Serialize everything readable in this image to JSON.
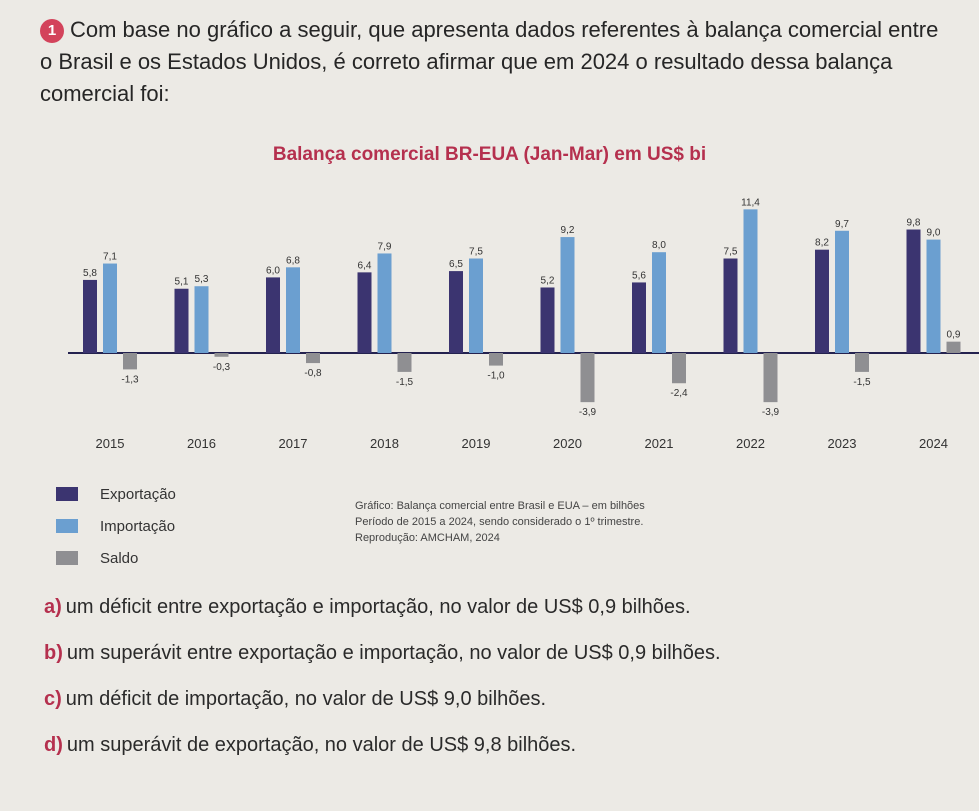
{
  "question": {
    "number": "1",
    "text": "Com base no gráfico a seguir, que apresenta dados referentes à balança comercial entre o Brasil e os Estados Unidos, é correto afirmar que em 2024 o resultado dessa balança comercial foi:"
  },
  "chart_data": {
    "type": "bar",
    "title": "Balança comercial BR-EUA (Jan-Mar) em US$ bi",
    "categories": [
      "2015",
      "2016",
      "2017",
      "2018",
      "2019",
      "2020",
      "2021",
      "2022",
      "2023",
      "2024"
    ],
    "series": [
      {
        "name": "Exportação",
        "color": "#3b3470",
        "values": [
          5.8,
          5.1,
          6.0,
          6.4,
          6.5,
          5.2,
          5.6,
          7.5,
          8.2,
          9.8
        ],
        "labels": [
          "5,8",
          "5,1",
          "6,0",
          "6,4",
          "6,5",
          "5,2",
          "5,6",
          "7,5",
          "8,2",
          "9,8"
        ]
      },
      {
        "name": "Importação",
        "color": "#6b9fd0",
        "values": [
          7.1,
          5.3,
          6.8,
          7.9,
          7.5,
          9.2,
          8.0,
          11.4,
          9.7,
          9.0
        ],
        "labels": [
          "7,1",
          "5,3",
          "6,8",
          "7,9",
          "7,5",
          "9,2",
          "8,0",
          "11,4",
          "9,7",
          "9,0"
        ]
      },
      {
        "name": "Saldo",
        "color": "#8f8f92",
        "values": [
          -1.3,
          -0.3,
          -0.8,
          -1.5,
          -1.0,
          -3.9,
          -2.4,
          -3.9,
          -1.5,
          0.9
        ],
        "labels": [
          "-1,3",
          "-0,3",
          "-0,8",
          "-1,5",
          "-1,0",
          "-3,9",
          "-2,4",
          "-3,9",
          "-1,5",
          "0,9"
        ]
      }
    ],
    "legend": [
      "Exportação",
      "Importação",
      "Saldo"
    ],
    "axis_color": "#24224f"
  },
  "caption": {
    "line1": "Gráfico: Balança comercial entre Brasil e EUA – em bilhões",
    "line2": "Período de 2015 a 2024, sendo considerado o 1º trimestre.",
    "line3": "Reprodução: AMCHAM, 2024"
  },
  "answers": [
    {
      "letter": "a)",
      "text": "um déficit entre exportação e importação, no valor de US$ 0,9 bilhões."
    },
    {
      "letter": "b)",
      "text": "um superávit entre exportação e importação, no valor de US$ 0,9 bilhões."
    },
    {
      "letter": "c)",
      "text": "um déficit de importação, no valor de US$ 9,0 bilhões."
    },
    {
      "letter": "d)",
      "text": "um superávit de exportação, no valor de US$ 9,8 bilhões."
    }
  ]
}
